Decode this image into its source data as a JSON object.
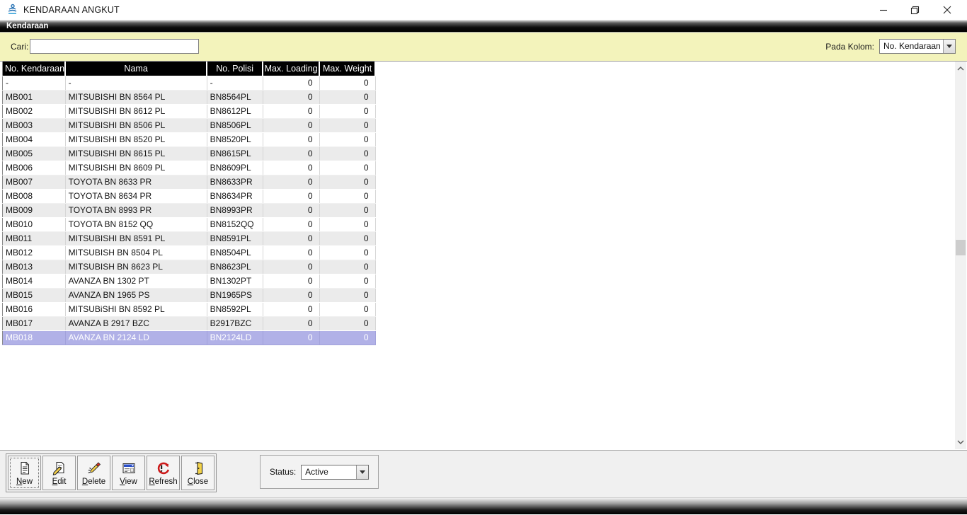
{
  "window": {
    "title": "KENDARAAN ANGKUT"
  },
  "menu": {
    "items": [
      {
        "label": "Kendaraan"
      }
    ]
  },
  "search": {
    "label": "Cari:",
    "value": "",
    "column_label": "Pada Kolom:",
    "column_value": "No. Kendaraan"
  },
  "table": {
    "columns": [
      "No. Kendaraan",
      "Nama",
      "No. Polisi",
      "Max. Loading",
      "Max. Weight"
    ],
    "selected_index": 18,
    "rows": [
      [
        "-",
        "-",
        "-",
        "0",
        "0"
      ],
      [
        "MB001",
        "MITSUBISHI BN 8564 PL",
        "BN8564PL",
        "0",
        "0"
      ],
      [
        "MB002",
        "MITSUBISHI BN 8612 PL",
        "BN8612PL",
        "0",
        "0"
      ],
      [
        "MB003",
        "MITSUBISHI BN 8506 PL",
        "BN8506PL",
        "0",
        "0"
      ],
      [
        "MB004",
        "MITSUBISHI BN 8520 PL",
        "BN8520PL",
        "0",
        "0"
      ],
      [
        "MB005",
        "MITSUBISHI BN 8615 PL",
        "BN8615PL",
        "0",
        "0"
      ],
      [
        "MB006",
        "MITSUBISHI BN 8609 PL",
        "BN8609PL",
        "0",
        "0"
      ],
      [
        "MB007",
        "TOYOTA BN 8633 PR",
        "BN8633PR",
        "0",
        "0"
      ],
      [
        "MB008",
        "TOYOTA BN 8634 PR",
        "BN8634PR",
        "0",
        "0"
      ],
      [
        "MB009",
        "TOYOTA BN 8993 PR",
        "BN8993PR",
        "0",
        "0"
      ],
      [
        "MB010",
        "TOYOTA BN 8152 QQ",
        "BN8152QQ",
        "0",
        "0"
      ],
      [
        "MB011",
        "MITSUBISHI BN 8591 PL",
        "BN8591PL",
        "0",
        "0"
      ],
      [
        "MB012",
        "MITSUBISH BN 8504 PL",
        "BN8504PL",
        "0",
        "0"
      ],
      [
        "MB013",
        "MITSUBISH BN 8623 PL",
        "BN8623PL",
        "0",
        "0"
      ],
      [
        "MB014",
        "AVANZA BN 1302 PT",
        "BN1302PT",
        "0",
        "0"
      ],
      [
        "MB015",
        "AVANZA BN 1965 PS",
        "BN1965PS",
        "0",
        "0"
      ],
      [
        "MB016",
        "MITSUBiSHI BN 8592 PL",
        "BN8592PL",
        "0",
        "0"
      ],
      [
        "MB017",
        "AVANZA B 2917 BZC",
        "B2917BZC",
        "0",
        "0"
      ],
      [
        "MB018",
        "AVANZA BN 2124 LD",
        "BN2124LD",
        "0",
        "0"
      ]
    ]
  },
  "toolbar": {
    "buttons": [
      {
        "label": "New",
        "icon": "new-document-icon"
      },
      {
        "label": "Edit",
        "icon": "edit-document-icon"
      },
      {
        "label": "Delete",
        "icon": "delete-pencil-icon"
      },
      {
        "label": "View",
        "icon": "view-window-icon"
      },
      {
        "label": "Refresh",
        "icon": "refresh-icon"
      },
      {
        "label": "Close",
        "icon": "close-door-icon"
      }
    ]
  },
  "status": {
    "label": "Status:",
    "value": "Active"
  },
  "colors": {
    "search_panel": "#f3f3bb",
    "grid_header_bg": "#000000",
    "alt_row": "#ebebeb",
    "selected_row": "#b1b1e7",
    "selected_text": "#ffffff"
  }
}
